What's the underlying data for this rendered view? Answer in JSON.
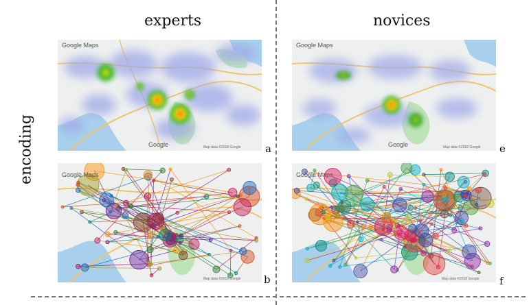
{
  "columns": {
    "left": "experts",
    "right": "novices"
  },
  "row_label": "encoding",
  "panels": [
    {
      "id": "a",
      "label": "a",
      "kind": "heatmap",
      "brand": "Google Maps",
      "footer_brand": "Google",
      "footer_note": "Map data ©2018 Google"
    },
    {
      "id": "e",
      "label": "e",
      "kind": "heatmap",
      "brand": "Google Maps",
      "footer_brand": "Google",
      "footer_note": "Map data ©2018 Google"
    },
    {
      "id": "b",
      "label": "b",
      "kind": "scanpath",
      "brand": "Google Maps",
      "footer_brand": "Google",
      "footer_note": "Map data ©2018 Google"
    },
    {
      "id": "f",
      "label": "f",
      "kind": "scanpath",
      "brand": "Google Maps",
      "footer_brand": "Google",
      "footer_note": "Map data ©2018 Google"
    }
  ],
  "colors": {
    "sea": "#a8d0ec",
    "land": "#eef0ef",
    "park": "#bfe3b8",
    "road": "#f2c46b",
    "heat_low": "#9fa8e8",
    "heat_high": "#ff1f1f"
  }
}
